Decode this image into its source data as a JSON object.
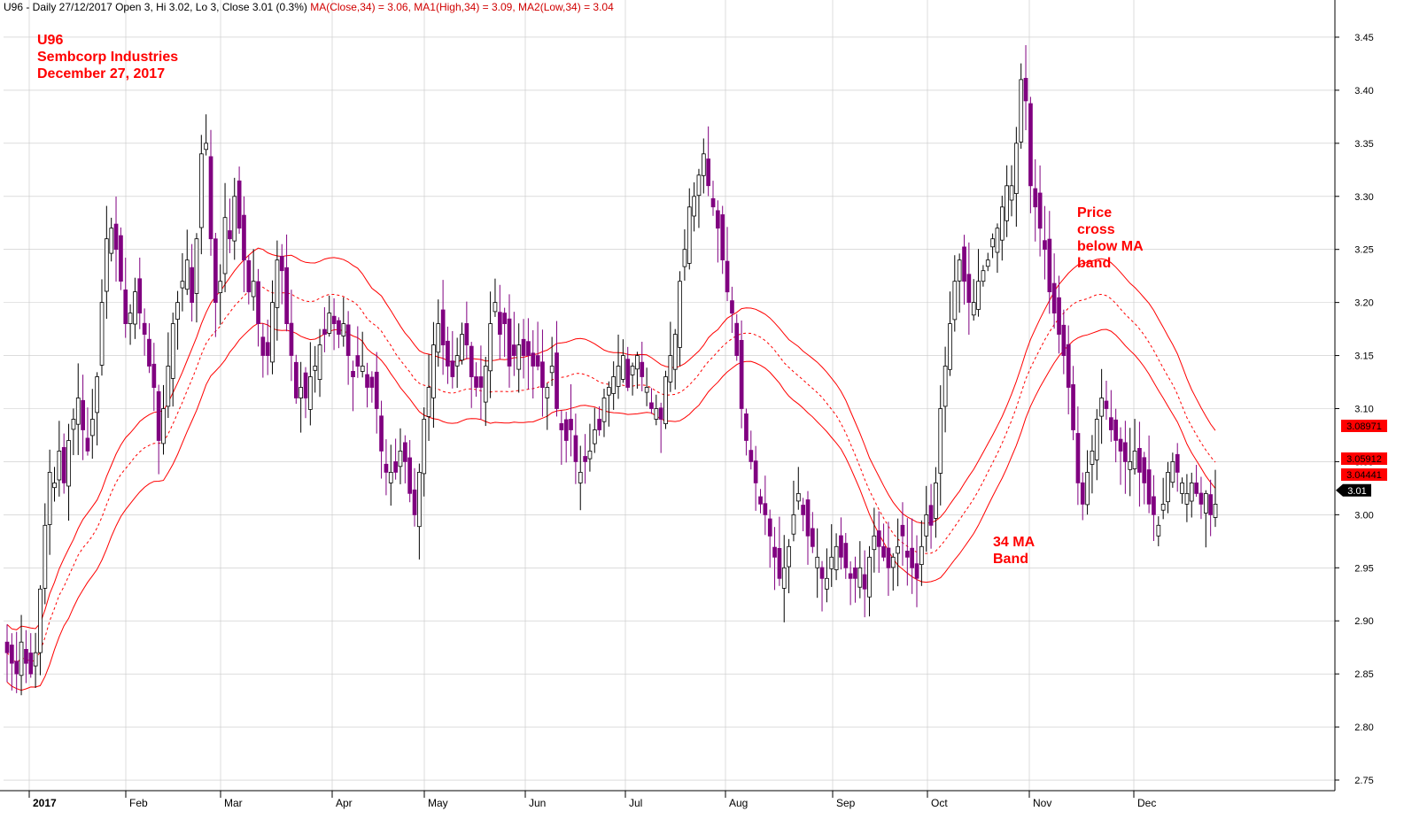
{
  "header": {
    "prefix": "U96 - Daily 27/12/2017 Open 3, Hi 3.02, Lo 3, Close 3.01 (0.3%)",
    "ma_close": "MA(Close,34) = 3.06,",
    "ma_high": "MA1(High,34) = 3.09,",
    "ma_low": "MA2(Low,34) = 3.04"
  },
  "annotations": {
    "title": [
      "U96",
      "Sembcorp Industries",
      "December 27, 2017"
    ],
    "price_cross": [
      "Price",
      "cross",
      "below MA",
      "band"
    ],
    "ma_band": [
      "34 MA",
      "Band"
    ]
  },
  "colors": {
    "up_candle": "#ffffff",
    "down_candle": "#800080",
    "ma_line": "#ff0000",
    "grid": "#c8c8c8",
    "tag_bg": "#ff0000",
    "last_price_bg": "#000000"
  },
  "chart_data": {
    "type": "candlestick",
    "ylim": [
      2.74,
      3.47
    ],
    "y_ticks": [
      "3.45",
      "3.40",
      "3.35",
      "3.30",
      "3.25",
      "3.20",
      "3.15",
      "3.10",
      "3.05",
      "3.00",
      "2.95",
      "2.90",
      "2.85",
      "2.80",
      "2.75"
    ],
    "months": [
      "2017",
      "Feb",
      "Mar",
      "Apr",
      "May",
      "Jun",
      "Jul",
      "Aug",
      "Sep",
      "Oct",
      "Nov",
      "Dec"
    ],
    "last_price": "3.01",
    "ma_tags": [
      {
        "name": "MA1(High,34)",
        "label": "3.08971",
        "value": 3.0897
      },
      {
        "name": "MA(Close,34)",
        "label": "3.05912",
        "value": 3.0591
      },
      {
        "name": "MA2(Low,34)",
        "label": "3.04441",
        "value": 3.0444
      }
    ],
    "close": [
      2.87,
      2.86,
      2.85,
      2.88,
      2.86,
      2.85,
      2.87,
      2.93,
      2.99,
      3.04,
      3.03,
      3.06,
      3.03,
      3.07,
      3.09,
      3.11,
      3.08,
      3.06,
      3.09,
      3.13,
      3.2,
      3.26,
      3.27,
      3.25,
      3.22,
      3.18,
      3.19,
      3.21,
      3.19,
      3.17,
      3.14,
      3.12,
      3.07,
      3.1,
      3.14,
      3.18,
      3.2,
      3.22,
      3.24,
      3.2,
      3.26,
      3.34,
      3.35,
      3.26,
      3.2,
      3.22,
      3.28,
      3.26,
      3.3,
      3.27,
      3.24,
      3.21,
      3.22,
      3.18,
      3.15,
      3.15,
      3.2,
      3.24,
      3.23,
      3.18,
      3.15,
      3.11,
      3.12,
      3.11,
      3.13,
      3.14,
      3.16,
      3.17,
      3.19,
      3.18,
      3.17,
      3.18,
      3.15,
      3.13,
      3.14,
      3.14,
      3.12,
      3.12,
      3.1,
      3.06,
      3.04,
      3.04,
      3.04,
      3.06,
      3.05,
      3.02,
      3.0,
      3.04,
      3.09,
      3.12,
      3.16,
      3.18,
      3.16,
      3.14,
      3.13,
      3.15,
      3.17,
      3.16,
      3.13,
      3.12,
      3.12,
      3.14,
      3.18,
      3.2,
      3.17,
      3.18,
      3.14,
      3.15,
      3.16,
      3.15,
      3.15,
      3.14,
      3.14,
      3.12,
      3.12,
      3.14,
      3.1,
      3.08,
      3.07,
      3.08,
      3.05,
      3.04,
      3.05,
      3.06,
      3.08,
      3.08,
      3.11,
      3.12,
      3.13,
      3.14,
      3.15,
      3.12,
      3.14,
      3.15,
      3.13,
      3.12,
      3.1,
      3.1,
      3.09,
      3.13,
      3.15,
      3.17,
      3.22,
      3.25,
      3.29,
      3.3,
      3.32,
      3.34,
      3.31,
      3.29,
      3.27,
      3.24,
      3.21,
      3.19,
      3.15,
      3.1,
      3.07,
      3.05,
      3.03,
      3.01,
      3.0,
      2.98,
      2.96,
      2.94,
      2.95,
      2.97,
      3.0,
      3.02,
      3.0,
      2.98,
      2.97,
      2.96,
      2.94,
      2.94,
      2.96,
      2.97,
      2.96,
      2.95,
      2.94,
      2.94,
      2.95,
      2.93,
      2.96,
      2.98,
      2.97,
      2.96,
      2.95,
      2.96,
      2.97,
      2.98,
      2.96,
      2.95,
      2.94,
      2.97,
      3.0,
      2.99,
      3.03,
      3.1,
      3.14,
      3.18,
      3.22,
      3.24,
      3.22,
      3.2,
      3.2,
      3.22,
      3.23,
      3.24,
      3.26,
      3.27,
      3.29,
      3.31,
      3.31,
      3.35,
      3.41,
      3.39,
      3.31,
      3.29,
      3.27,
      3.25,
      3.21,
      3.19,
      3.17,
      3.15,
      3.12,
      3.08,
      3.03,
      3.01,
      3.04,
      3.06,
      3.09,
      3.11,
      3.1,
      3.08,
      3.07,
      3.06,
      3.05,
      3.05,
      3.06,
      3.04,
      3.03,
      3.01,
      3.0,
      2.99,
      3.01,
      3.04,
      3.05,
      3.04,
      3.03,
      3.02,
      3.03,
      3.02,
      3.01,
      3.02,
      3.0,
      3.01
    ]
  }
}
